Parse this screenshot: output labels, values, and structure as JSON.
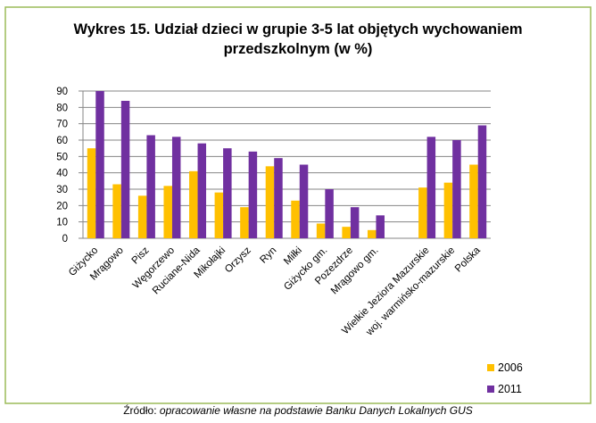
{
  "chart_data": {
    "type": "bar",
    "title": "Wykres 15. Udział dzieci w grupie 3-5 lat objętych wychowaniem przedszkolnym (w %)",
    "categories": [
      "Giżycko",
      "Mrągowo",
      "Pisz",
      "Węgorzewo",
      "Ruciane-Nida",
      "Mikołajki",
      "Orzysz",
      "Ryn",
      "Miłki",
      "Giżycko gm.",
      "Pozezdrze",
      "Mrągowo gm.",
      null,
      "Wielkie Jeziora Mazurskie",
      "woj. warmińsko-mazurskie",
      "Polska"
    ],
    "series": [
      {
        "name": "2006",
        "color": "#FFC000",
        "values": [
          55,
          33,
          26,
          32,
          41,
          28,
          19,
          44,
          23,
          9,
          7,
          5,
          null,
          31,
          34,
          45
        ]
      },
      {
        "name": "2011",
        "color": "#7030A0",
        "values": [
          90,
          84,
          63,
          62,
          58,
          55,
          53,
          49,
          45,
          30,
          19,
          14,
          null,
          62,
          60,
          69
        ]
      }
    ],
    "ylim": [
      0,
      90
    ],
    "yticks": [
      0,
      10,
      20,
      30,
      40,
      50,
      60,
      70,
      80,
      90
    ],
    "grid": true,
    "legend": "bottom-right",
    "source_label": "Źródło:",
    "source_text": "opracowanie własne na podstawie Banku Danych Lokalnych GUS"
  }
}
